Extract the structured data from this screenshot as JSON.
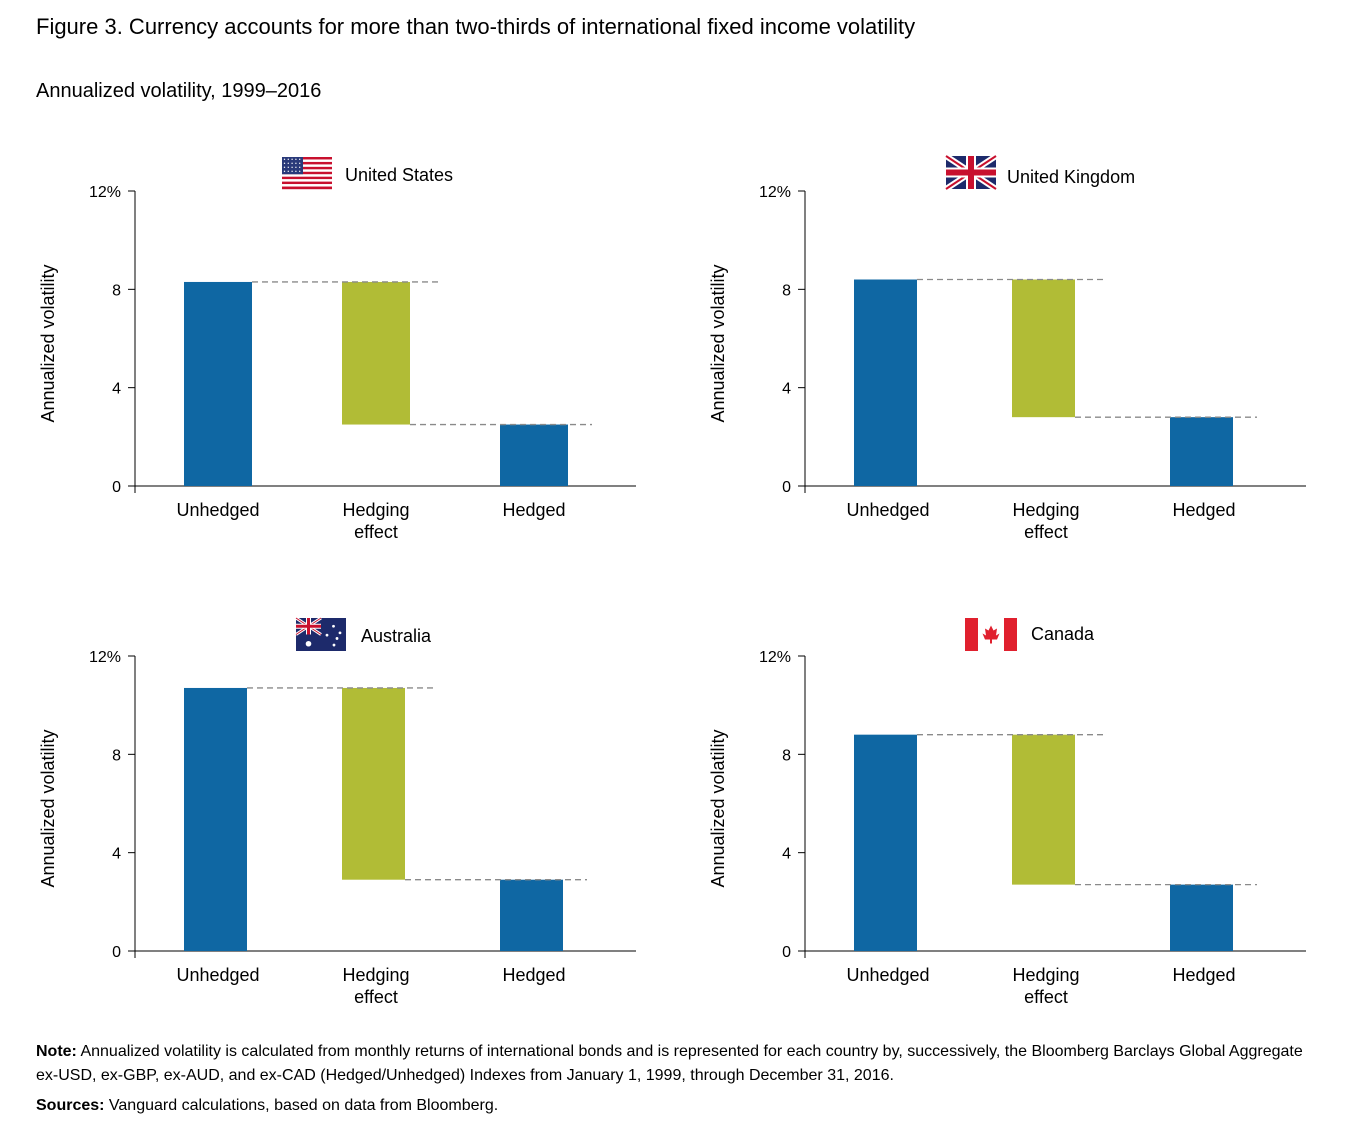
{
  "title": "Figure 3. Currency accounts for more than two-thirds of international fixed income volatility",
  "subtitle": "Annualized volatility, 1999–2016",
  "note": {
    "label": "Note:",
    "text": "Annualized volatility is calculated from monthly returns of international bonds and is represented for each country by, successively, the Bloomberg Barclays Global Aggregate ex-USD, ex-GBP, ex-AUD, and ex-CAD (Hedged/Unhedged) Indexes from January 1, 1999, through December 31, 2016."
  },
  "sources": {
    "label": "Sources:",
    "text": "Vanguard calculations, based on data from Bloomberg."
  },
  "colors": {
    "unhedged": "#0f67a3",
    "hedging_effect": "#b1bc36",
    "hedged": "#0f67a3",
    "dashed": "#8a8a8a",
    "axis": "#000000"
  },
  "chart_data": [
    {
      "type": "bar",
      "title": "United States",
      "flag_icon": "us-flag-icon",
      "categories": [
        "Unhedged",
        "Hedging effect",
        "Hedged"
      ],
      "category_lines": [
        [
          "Unhedged"
        ],
        [
          "Hedging",
          "effect"
        ],
        [
          "Hedged"
        ]
      ],
      "unhedged": 8.3,
      "hedged": 2.5,
      "ylabel": "Annualized volatility",
      "yticks": [
        "0",
        "4",
        "8",
        "12%"
      ],
      "ylim": [
        0,
        12
      ]
    },
    {
      "type": "bar",
      "title": "United Kingdom",
      "flag_icon": "uk-flag-icon",
      "categories": [
        "Unhedged",
        "Hedging effect",
        "Hedged"
      ],
      "category_lines": [
        [
          "Unhedged"
        ],
        [
          "Hedging",
          "effect"
        ],
        [
          "Hedged"
        ]
      ],
      "unhedged": 8.4,
      "hedged": 2.8,
      "ylabel": "Annualized volatility",
      "yticks": [
        "0",
        "4",
        "8",
        "12%"
      ],
      "ylim": [
        0,
        12
      ]
    },
    {
      "type": "bar",
      "title": "Australia",
      "flag_icon": "australia-flag-icon",
      "categories": [
        "Unhedged",
        "Hedging effect",
        "Hedged"
      ],
      "category_lines": [
        [
          "Unhedged"
        ],
        [
          "Hedging",
          "effect"
        ],
        [
          "Hedged"
        ]
      ],
      "unhedged": 10.7,
      "hedged": 2.9,
      "ylabel": "Annualized volatility",
      "yticks": [
        "0",
        "4",
        "8",
        "12%"
      ],
      "ylim": [
        0,
        12
      ]
    },
    {
      "type": "bar",
      "title": "Canada",
      "flag_icon": "canada-flag-icon",
      "categories": [
        "Unhedged",
        "Hedging effect",
        "Hedged"
      ],
      "category_lines": [
        [
          "Unhedged"
        ],
        [
          "Hedging",
          "effect"
        ],
        [
          "Hedged"
        ]
      ],
      "unhedged": 8.8,
      "hedged": 2.7,
      "ylabel": "Annualized volatility",
      "yticks": [
        "0",
        "4",
        "8",
        "12%"
      ],
      "ylim": [
        0,
        12
      ]
    }
  ]
}
